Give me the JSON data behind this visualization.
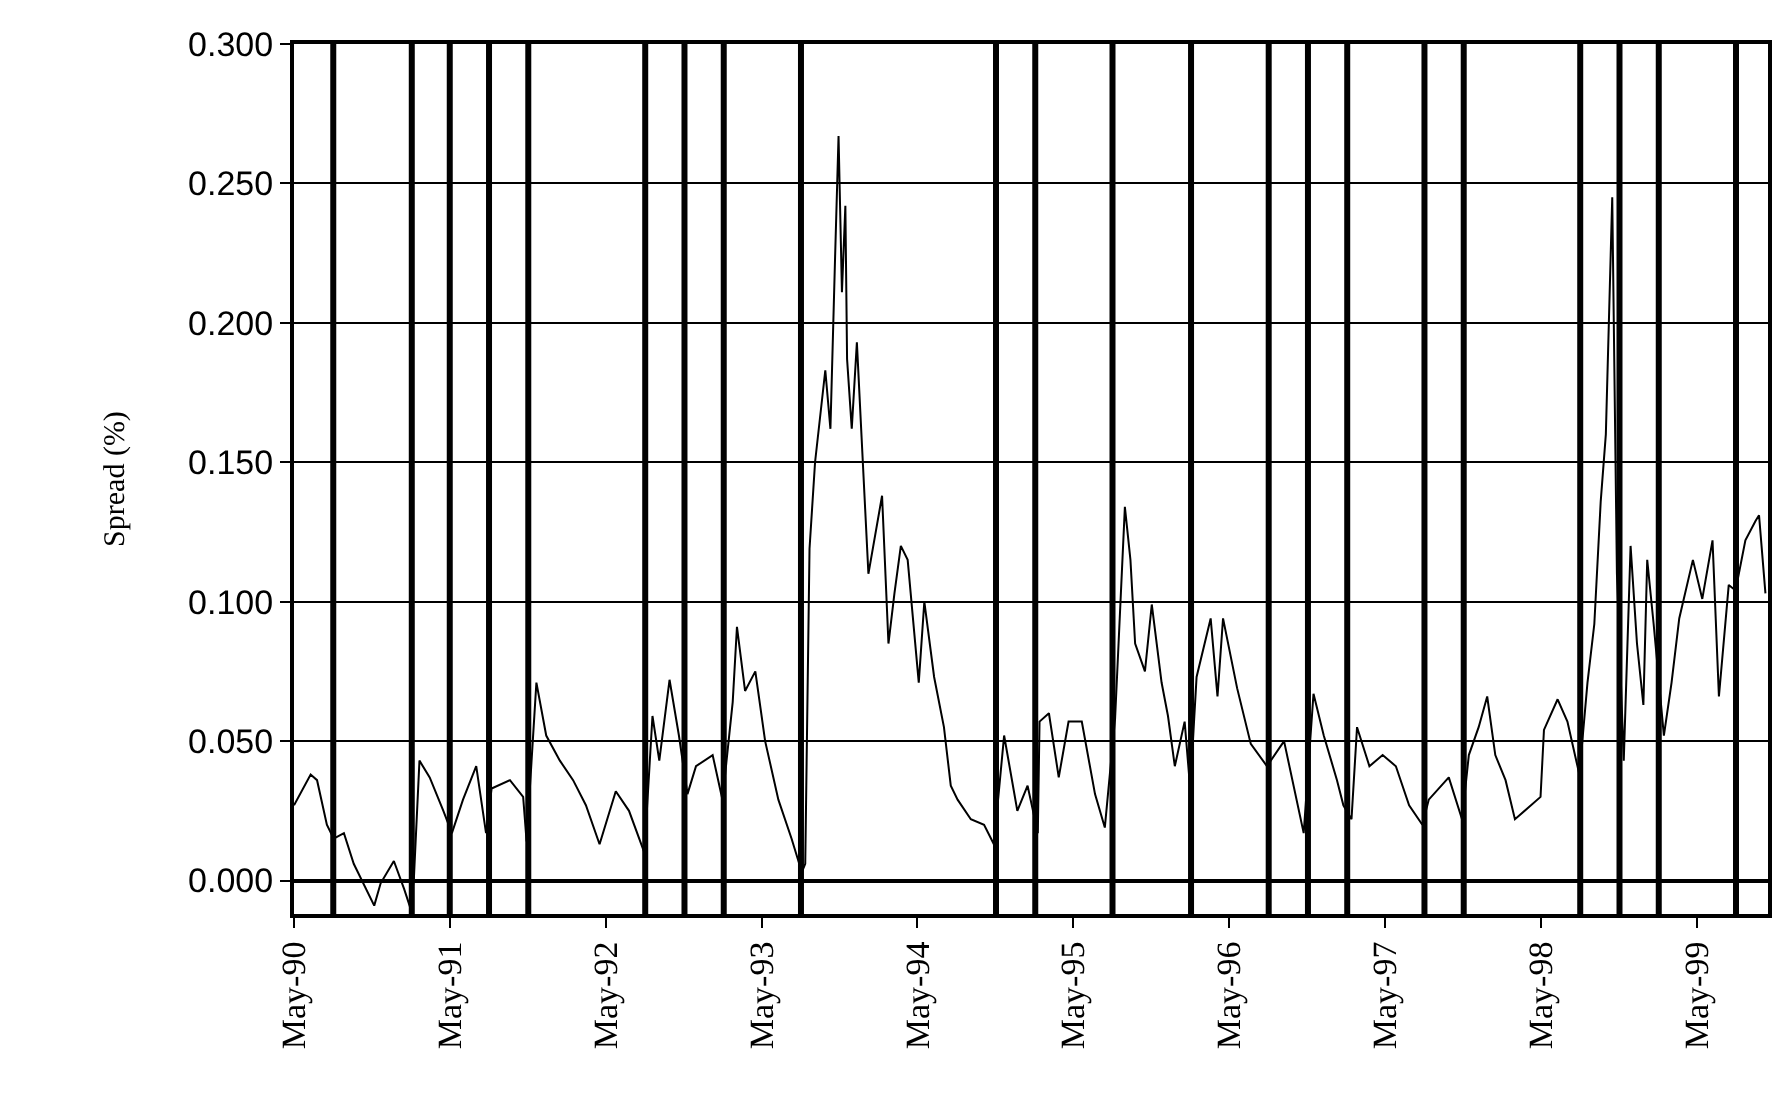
{
  "chart_data": {
    "type": "line",
    "ylabel": "Spread (%)",
    "x": [
      "1990-05-01",
      "1990-06-09",
      "1990-06-24",
      "1990-07-17",
      "1990-08-02",
      "1990-08-26",
      "1990-09-18",
      "1990-11-05",
      "1990-11-20",
      "1990-12-21",
      "1991-01-14",
      "1991-01-29",
      "1991-02-06",
      "1991-02-19",
      "1991-03-15",
      "1991-04-16",
      "1991-05-06",
      "1991-06-01",
      "1991-07-02",
      "1991-07-25",
      "1991-08-07",
      "1991-09-19",
      "1991-10-20",
      "1991-10-28",
      "1991-11-20",
      "1991-12-13",
      "1992-01-14",
      "1992-02-14",
      "1992-03-15",
      "1992-04-16",
      "1992-05-24",
      "1992-06-24",
      "1992-07-30",
      "1992-08-18",
      "1992-09-03",
      "1992-09-27",
      "1992-10-19",
      "1992-11-08",
      "1992-11-28",
      "1993-01-06",
      "1993-01-29",
      "1993-02-22",
      "1993-03-04",
      "1993-03-23",
      "1993-04-16",
      "1993-05-09",
      "1993-06-09",
      "1993-07-10",
      "1993-08-03",
      "1993-08-11",
      "1993-08-21",
      "1993-09-03",
      "1993-09-27",
      "1993-10-09",
      "1993-10-20",
      "1993-10-28",
      "1993-11-05",
      "1993-11-13",
      "1993-11-17",
      "1993-11-28",
      "1993-12-10",
      "1993-12-21",
      "1994-01-06",
      "1994-02-07",
      "1994-02-22",
      "1994-03-08",
      "1994-03-23",
      "1994-04-08",
      "1994-05-04",
      "1994-05-17",
      "1994-06-09",
      "1994-07-02",
      "1994-07-18",
      "1994-08-03",
      "1994-09-03",
      "1994-10-04",
      "1994-10-27",
      "1994-11-20",
      "1994-12-21",
      "1995-01-14",
      "1995-02-07",
      "1995-02-11",
      "1995-03-05",
      "1995-03-28",
      "1995-04-20",
      "1995-05-21",
      "1995-06-21",
      "1995-07-14",
      "1995-08-07",
      "1995-08-30",
      "1995-09-12",
      "1995-09-23",
      "1995-10-16",
      "1995-11-01",
      "1995-11-24",
      "1995-12-09",
      "1995-12-25",
      "1996-01-17",
      "1996-01-30",
      "1996-02-14",
      "1996-03-18",
      "1996-04-03",
      "1996-04-16",
      "1996-05-19",
      "1996-06-20",
      "1996-07-28",
      "1996-09-06",
      "1996-10-22",
      "1996-11-14",
      "1996-12-08",
      "1997-01-08",
      "1997-01-23",
      "1997-02-11",
      "1997-02-24",
      "1997-03-25",
      "1997-04-25",
      "1997-05-26",
      "1997-06-26",
      "1997-07-27",
      "1997-08-11",
      "1997-09-27",
      "1997-10-28",
      "1997-11-13",
      "1997-12-06",
      "1997-12-26",
      "1998-01-14",
      "1998-02-07",
      "1998-03-01",
      "1998-04-30",
      "1998-05-08",
      "1998-06-09",
      "1998-07-02",
      "1998-07-30",
      "1998-08-18",
      "1998-09-03",
      "1998-09-18",
      "1998-09-30",
      "1998-10-15",
      "1998-10-26",
      "1998-11-11",
      "1998-11-27",
      "1998-12-12",
      "1998-12-27",
      "1999-01-05",
      "1999-01-20",
      "1999-02-13",
      "1999-03-03",
      "1999-03-21",
      "1999-04-22",
      "1999-05-14",
      "1999-06-07",
      "1999-06-22",
      "1999-07-15",
      "1999-07-31",
      "1999-08-23",
      "1999-09-16",
      "1999-09-24",
      "1999-10-09"
    ],
    "series": [
      {
        "color": "#000000",
        "values": [
          0.027,
          0.038,
          0.036,
          0.02,
          0.015,
          0.017,
          0.006,
          -0.009,
          -0.001,
          0.007,
          -0.003,
          -0.01,
          0.001,
          0.043,
          0.037,
          0.025,
          0.017,
          0.029,
          0.041,
          0.017,
          0.033,
          0.036,
          0.03,
          0.014,
          0.071,
          0.052,
          0.043,
          0.036,
          0.027,
          0.013,
          0.032,
          0.025,
          0.01,
          0.059,
          0.043,
          0.072,
          0.052,
          0.031,
          0.041,
          0.045,
          0.029,
          0.064,
          0.091,
          0.068,
          0.075,
          0.05,
          0.029,
          0.015,
          0.003,
          0.006,
          0.119,
          0.15,
          0.183,
          0.162,
          0.224,
          0.267,
          0.211,
          0.242,
          0.187,
          0.162,
          0.193,
          0.159,
          0.11,
          0.138,
          0.085,
          0.103,
          0.12,
          0.115,
          0.071,
          0.1,
          0.073,
          0.055,
          0.034,
          0.029,
          0.022,
          0.02,
          0.013,
          0.052,
          0.025,
          0.034,
          0.017,
          0.057,
          0.06,
          0.037,
          0.057,
          0.057,
          0.031,
          0.019,
          0.058,
          0.134,
          0.115,
          0.085,
          0.075,
          0.099,
          0.071,
          0.059,
          0.041,
          0.057,
          0.033,
          0.073,
          0.094,
          0.066,
          0.094,
          0.069,
          0.049,
          0.041,
          0.05,
          0.017,
          0.067,
          0.052,
          0.036,
          0.027,
          0.022,
          0.055,
          0.041,
          0.045,
          0.041,
          0.027,
          0.02,
          0.029,
          0.037,
          0.022,
          0.045,
          0.055,
          0.066,
          0.045,
          0.036,
          0.022,
          0.03,
          0.054,
          0.065,
          0.057,
          0.038,
          0.071,
          0.092,
          0.136,
          0.16,
          0.245,
          0.11,
          0.043,
          0.12,
          0.085,
          0.063,
          0.115,
          0.092,
          0.052,
          0.071,
          0.094,
          0.115,
          0.101,
          0.122,
          0.066,
          0.106,
          0.104,
          0.122,
          0.129,
          0.131,
          0.103
        ]
      }
    ],
    "xlim": [
      "1990-05-01",
      "1999-10-15"
    ],
    "xticks": [
      {
        "value": "1990-05-01",
        "label": "May-90"
      },
      {
        "value": "1991-05-01",
        "label": "May-91"
      },
      {
        "value": "1992-05-01",
        "label": "May-92"
      },
      {
        "value": "1993-05-01",
        "label": "May-93"
      },
      {
        "value": "1994-05-01",
        "label": "May-94"
      },
      {
        "value": "1995-05-01",
        "label": "May-95"
      },
      {
        "value": "1996-05-01",
        "label": "May-96"
      },
      {
        "value": "1997-05-01",
        "label": "May-97"
      },
      {
        "value": "1998-05-01",
        "label": "May-98"
      },
      {
        "value": "1999-05-01",
        "label": "May-99"
      }
    ],
    "ylim": [
      -0.012,
      0.3
    ],
    "yticks": [
      {
        "value": 0,
        "label": "0.000"
      },
      {
        "value": 0.05,
        "label": "0.050"
      },
      {
        "value": 0.1,
        "label": "0.100"
      },
      {
        "value": 0.15,
        "label": "0.150"
      },
      {
        "value": 0.2,
        "label": "0.200"
      },
      {
        "value": 0.25,
        "label": "0.250"
      },
      {
        "value": 0.3,
        "label": "0.300"
      }
    ],
    "grid": "y",
    "marker": "none",
    "line_style": "solid",
    "ref_lines": [
      {
        "axis": "x",
        "value": "1990-08-01",
        "color": "#000000"
      },
      {
        "axis": "x",
        "value": "1991-02-01",
        "color": "#000000"
      },
      {
        "axis": "x",
        "value": "1991-05-01",
        "color": "#000000"
      },
      {
        "axis": "x",
        "value": "1991-08-01",
        "color": "#000000"
      },
      {
        "axis": "x",
        "value": "1991-11-01",
        "color": "#000000"
      },
      {
        "axis": "x",
        "value": "1992-08-01",
        "color": "#000000"
      },
      {
        "axis": "x",
        "value": "1992-11-01",
        "color": "#000000"
      },
      {
        "axis": "x",
        "value": "1993-02-01",
        "color": "#000000"
      },
      {
        "axis": "x",
        "value": "1993-08-01",
        "color": "#000000"
      },
      {
        "axis": "x",
        "value": "1994-11-01",
        "color": "#000000"
      },
      {
        "axis": "x",
        "value": "1995-02-01",
        "color": "#000000"
      },
      {
        "axis": "x",
        "value": "1995-08-01",
        "color": "#000000"
      },
      {
        "axis": "x",
        "value": "1996-02-01",
        "color": "#000000"
      },
      {
        "axis": "x",
        "value": "1996-08-01",
        "color": "#000000"
      },
      {
        "axis": "x",
        "value": "1996-11-01",
        "color": "#000000"
      },
      {
        "axis": "x",
        "value": "1997-02-01",
        "color": "#000000"
      },
      {
        "axis": "x",
        "value": "1997-08-01",
        "color": "#000000"
      },
      {
        "axis": "x",
        "value": "1997-11-01",
        "color": "#000000"
      },
      {
        "axis": "x",
        "value": "1998-08-01",
        "color": "#000000"
      },
      {
        "axis": "x",
        "value": "1998-11-01",
        "color": "#000000"
      },
      {
        "axis": "x",
        "value": "1999-02-01",
        "color": "#000000"
      },
      {
        "axis": "x",
        "value": "1999-08-01",
        "color": "#000000"
      }
    ]
  }
}
